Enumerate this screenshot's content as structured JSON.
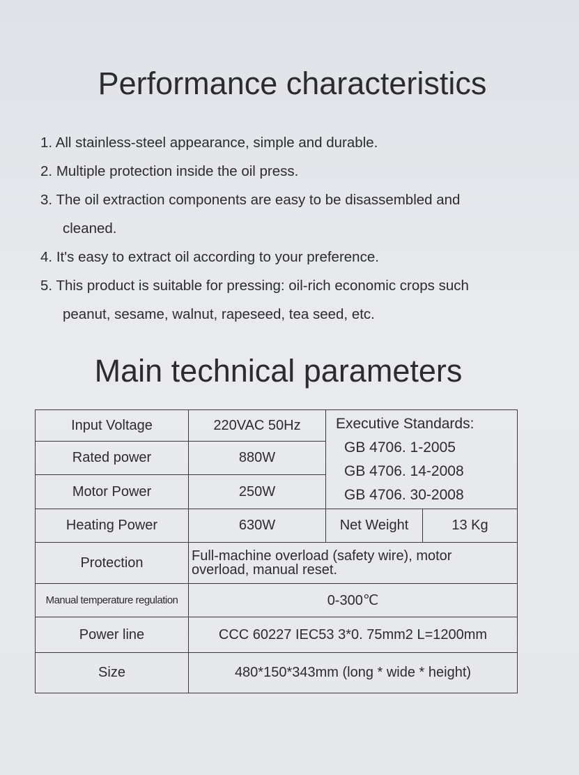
{
  "performance": {
    "title": "Performance characteristics",
    "items": [
      {
        "num": "1.",
        "text": "All stainless-steel appearance, simple and durable."
      },
      {
        "num": "2.",
        "text": "Multiple protection inside the oil press."
      },
      {
        "num": "3.",
        "text": "The oil extraction components are easy to be disassembled and",
        "cont": "cleaned."
      },
      {
        "num": "4.",
        "text": "It's easy to extract oil according to your preference."
      },
      {
        "num": "5.",
        "text": "This product is suitable for pressing: oil-rich economic crops such",
        "cont": "peanut, sesame, walnut, rapeseed, tea seed, etc."
      }
    ]
  },
  "parameters": {
    "title": "Main technical parameters",
    "input_voltage": {
      "label": "Input Voltage",
      "value": "220VAC  50Hz"
    },
    "rated_power": {
      "label": "Rated power",
      "value": "880W"
    },
    "motor_power": {
      "label": "Motor Power",
      "value": "250W"
    },
    "heating_power": {
      "label": "Heating Power",
      "value": "630W"
    },
    "standards": {
      "label": "Executive Standards:",
      "items": [
        "GB 4706. 1-2005",
        "GB 4706. 14-2008",
        "GB 4706. 30-2008"
      ]
    },
    "net_weight": {
      "label": "Net Weight",
      "value": "13 Kg"
    },
    "protection": {
      "label": "Protection",
      "value_line1": "Full-machine overload (safety wire),  motor",
      "value_line2": "overload,  manual reset."
    },
    "temperature": {
      "label": "Manual temperature regulation",
      "value": "0-300℃"
    },
    "power_line": {
      "label": "Power line",
      "value": "CCC 60227 IEC53 3*0. 75mm2 L=1200mm"
    },
    "size": {
      "label": "Size",
      "value": "480*150*343mm (long * wide * height)"
    }
  }
}
